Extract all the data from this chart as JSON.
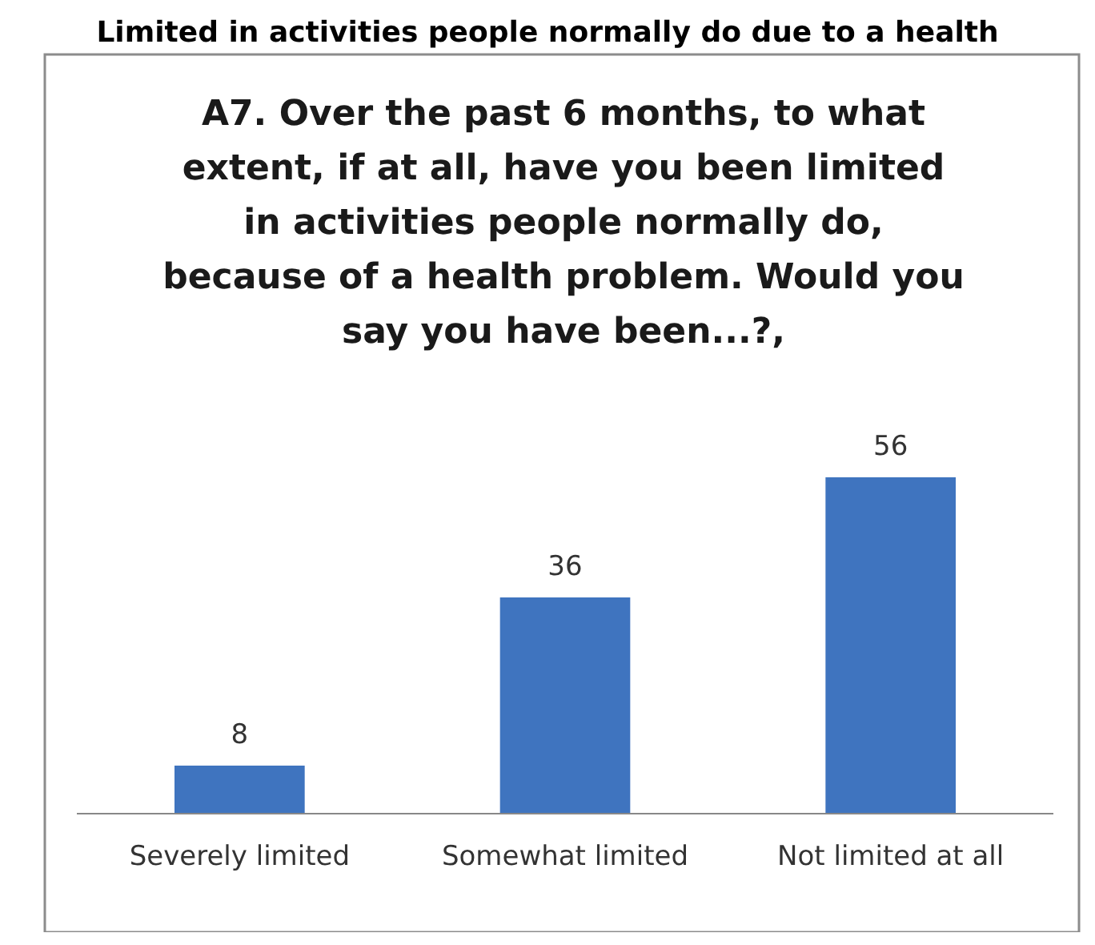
{
  "chart_data": {
    "type": "bar",
    "title": "Limited in activities people normally do due to a health",
    "subtitle": "A7. Over the past 6 months, to what extent, if at all, have you been limited in activities people normally do, because of a health problem. Would you say you have been...?,",
    "categories": [
      "Severely limited",
      "Somewhat limited",
      "Not limited at all"
    ],
    "values": [
      8,
      36,
      56
    ],
    "color": "#3f74bf",
    "data_labels": true
  }
}
